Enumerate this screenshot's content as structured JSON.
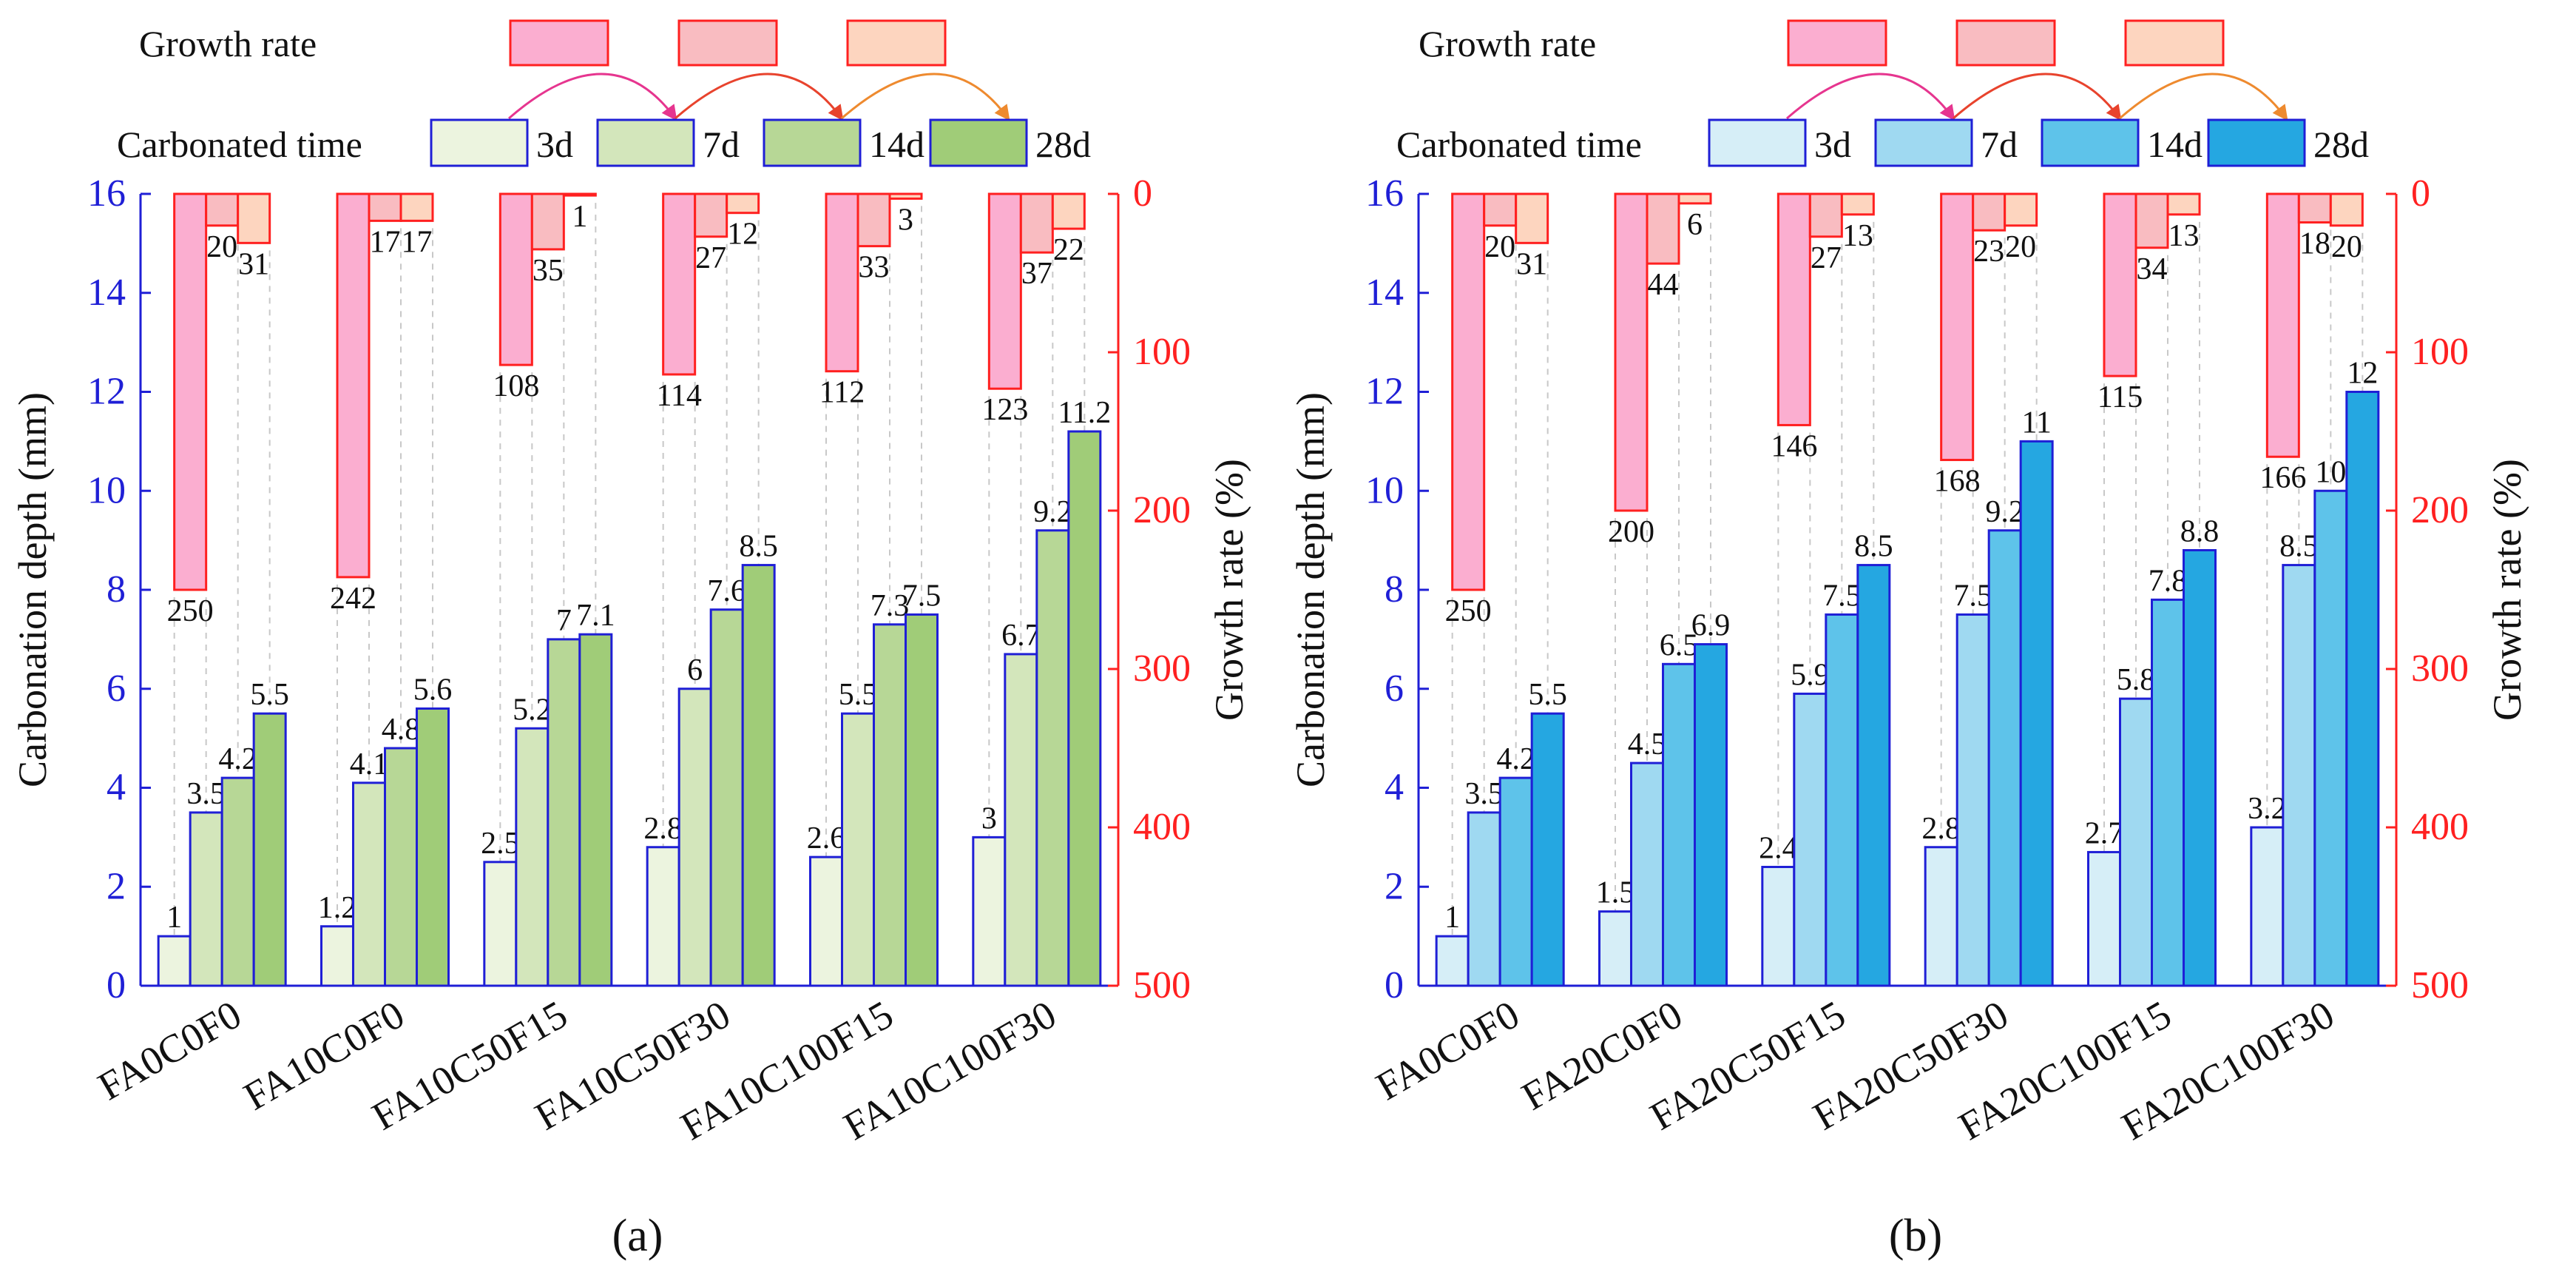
{
  "colors": {
    "bar_outline": "#1f1fd6",
    "rate_outline": "#ff2020",
    "rate_fill": [
      "#fbaed0",
      "#f9bcc1",
      "#fdd5bf"
    ],
    "arrow": [
      "#e6358f",
      "#e8432d",
      "#ee8a2f"
    ],
    "fill_a": [
      "#ecf4df",
      "#d3e6bb",
      "#b7d796",
      "#a0cc78"
    ],
    "fill_b": [
      "#d6eef7",
      "#9fd9f1",
      "#5ec3ea",
      "#25a7e1"
    ],
    "left_axis": "#1f1fd6",
    "right_axis": "#ff2020"
  },
  "chart_data": [
    {
      "type": "bar",
      "panel_label": "(a)",
      "legend_growth_label": "Growth rate",
      "legend_time_label": "Carbonated time",
      "categories": [
        "FA0C0F0",
        "FA10C0F0",
        "FA10C50F15",
        "FA10C50F30",
        "FA10C100F15",
        "FA10C100F30"
      ],
      "series": [
        {
          "name": "3d",
          "values": [
            1,
            1.2,
            2.5,
            2.8,
            2.6,
            3
          ]
        },
        {
          "name": "7d",
          "values": [
            3.5,
            4.1,
            5.2,
            6,
            5.5,
            6.7
          ]
        },
        {
          "name": "14d",
          "values": [
            4.2,
            4.8,
            7,
            7.6,
            7.3,
            9.2
          ]
        },
        {
          "name": "28d",
          "values": [
            5.5,
            5.6,
            7.1,
            8.5,
            7.5,
            11.2
          ]
        }
      ],
      "labels": [
        [
          "1",
          "1.2",
          "2.5",
          "2.8",
          "2.6",
          "3"
        ],
        [
          "3.5",
          "4.1",
          "5.2",
          "6",
          "5.5",
          "6.7"
        ],
        [
          "4.2",
          "4.8",
          "7",
          "7.6",
          "7.3",
          "9.2"
        ],
        [
          "5.5",
          "5.6",
          "7.1",
          "8.5",
          "7.5",
          "11.2"
        ]
      ],
      "growth_rate": {
        "names": [
          "3d→7d",
          "7d→14d",
          "14d→28d"
        ],
        "values": [
          [
            250,
            20,
            31
          ],
          [
            242,
            17,
            17
          ],
          [
            108,
            35,
            1
          ],
          [
            114,
            27,
            12
          ],
          [
            112,
            33,
            3
          ],
          [
            123,
            37,
            22
          ]
        ]
      },
      "ylabel": "Carbonation depth (mm)",
      "y2label": "Growth rate (%)",
      "ylim": [
        0,
        16
      ],
      "y2lim": [
        500,
        0
      ],
      "yticks": [
        0,
        2,
        4,
        6,
        8,
        10,
        12,
        14,
        16
      ],
      "y2ticks": [
        0,
        100,
        200,
        300,
        400,
        500
      ]
    },
    {
      "type": "bar",
      "panel_label": "(b)",
      "legend_growth_label": "Growth rate",
      "legend_time_label": "Carbonated time",
      "categories": [
        "FA0C0F0",
        "FA20C0F0",
        "FA20C50F15",
        "FA20C50F30",
        "FA20C100F15",
        "FA20C100F30"
      ],
      "series": [
        {
          "name": "3d",
          "values": [
            1,
            1.5,
            2.4,
            2.8,
            2.7,
            3.2
          ]
        },
        {
          "name": "7d",
          "values": [
            3.5,
            4.5,
            5.9,
            7.5,
            5.8,
            8.5
          ]
        },
        {
          "name": "14d",
          "values": [
            4.2,
            6.5,
            7.5,
            9.2,
            7.8,
            10
          ]
        },
        {
          "name": "28d",
          "values": [
            5.5,
            6.9,
            8.5,
            11,
            8.8,
            12
          ]
        }
      ],
      "labels": [
        [
          "1",
          "1.5",
          "2.4",
          "2.8",
          "2.7",
          "3.2"
        ],
        [
          "3.5",
          "4.5",
          "5.9",
          "7.5",
          "5.8",
          "8.5"
        ],
        [
          "4.2",
          "6.5",
          "7.5",
          "9.2",
          "7.8",
          "10"
        ],
        [
          "5.5",
          "6.9",
          "8.5",
          "11",
          "8.8",
          "12"
        ]
      ],
      "growth_rate": {
        "names": [
          "3d→7d",
          "7d→14d",
          "14d→28d"
        ],
        "values": [
          [
            250,
            20,
            31
          ],
          [
            200,
            44,
            6
          ],
          [
            146,
            27,
            13
          ],
          [
            168,
            23,
            20
          ],
          [
            115,
            34,
            13
          ],
          [
            166,
            18,
            20
          ]
        ]
      },
      "ylabel": "Carbonation depth (mm)",
      "y2label": "Growth rate (%)",
      "ylim": [
        0,
        16
      ],
      "y2lim": [
        500,
        0
      ],
      "yticks": [
        0,
        2,
        4,
        6,
        8,
        10,
        12,
        14,
        16
      ],
      "y2ticks": [
        0,
        100,
        200,
        300,
        400,
        500
      ]
    }
  ]
}
